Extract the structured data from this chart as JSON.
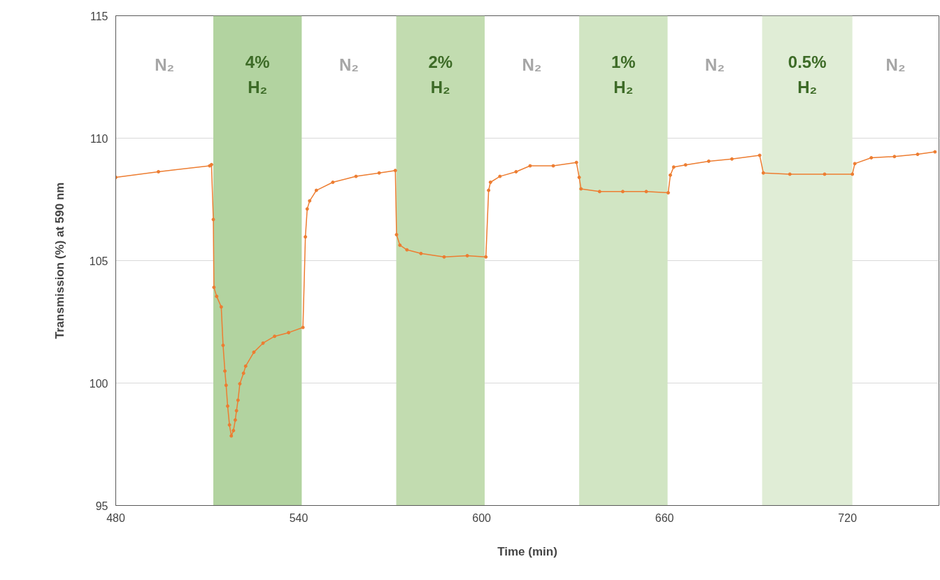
{
  "chart_data": {
    "type": "line",
    "xlabel": "Time (min)",
    "ylabel": "Transmission (%) at 590 nm",
    "xlim": [
      480,
      750
    ],
    "xticks": [
      480,
      540,
      600,
      660,
      720
    ],
    "ylim": [
      95,
      115
    ],
    "yticks": [
      95,
      100,
      105,
      110,
      115
    ],
    "grid": "y",
    "marker": "circle",
    "line_style": "solid",
    "series": [
      {
        "color": "#ed7d31",
        "x": [
          480,
          494,
          510.8,
          511.4,
          512,
          512.2,
          513.1,
          514.6,
          515.2,
          515.8,
          516.2,
          516.7,
          517.3,
          517.9,
          518.6,
          519.2,
          519.6,
          520.1,
          520.7,
          521.9,
          522.6,
          525.3,
          528.3,
          532.1,
          536.7,
          541.4,
          542.2,
          542.8,
          543.6,
          545.8,
          551.2,
          558.8,
          566.4,
          571.7,
          572.1,
          573.2,
          575.5,
          580.1,
          587.7,
          595.3,
          601.4,
          602.3,
          602.9,
          606,
          611.3,
          615.9,
          623.5,
          631.1,
          632,
          632.6,
          638.7,
          646.3,
          654,
          661.2,
          661.9,
          663,
          666.9,
          674.5,
          682.1,
          691.2,
          692.4,
          701.1,
          712.5,
          721.6,
          722.4,
          727.8,
          735.4,
          743,
          748.7
        ],
        "values": [
          108.4,
          108.63,
          108.87,
          108.92,
          106.68,
          103.91,
          103.54,
          103.11,
          101.54,
          100.49,
          99.91,
          99.06,
          98.29,
          97.84,
          98.06,
          98.49,
          98.87,
          99.3,
          99.97,
          100.4,
          100.69,
          101.26,
          101.63,
          101.91,
          102.06,
          102.27,
          105.97,
          107.11,
          107.44,
          107.87,
          108.2,
          108.44,
          108.58,
          108.68,
          106.06,
          105.63,
          105.44,
          105.29,
          105.15,
          105.2,
          105.15,
          107.87,
          108.2,
          108.44,
          108.63,
          108.87,
          108.87,
          109.01,
          108.4,
          107.93,
          107.82,
          107.82,
          107.82,
          107.77,
          108.49,
          108.82,
          108.91,
          109.06,
          109.15,
          109.3,
          108.58,
          108.53,
          108.53,
          108.53,
          108.96,
          109.2,
          109.25,
          109.34,
          109.44
        ]
      }
    ],
    "bands": [
      {
        "axis": "x",
        "from": 512,
        "to": 541,
        "label": "4%\nH₂",
        "color": "#b2d3a0"
      },
      {
        "axis": "x",
        "from": 572,
        "to": 601,
        "label": "2%\nH₂",
        "color": "#c2dcb0"
      },
      {
        "axis": "x",
        "from": 632,
        "to": 661,
        "label": "1%\nH₂",
        "color": "#d1e5c3"
      },
      {
        "axis": "x",
        "from": 692,
        "to": 721.6,
        "label": "0.5%\nH₂",
        "color": "#e0edd6"
      }
    ],
    "annotations": [
      "N₂",
      "N₂",
      "N₂",
      "N₂",
      "N₂"
    ]
  }
}
